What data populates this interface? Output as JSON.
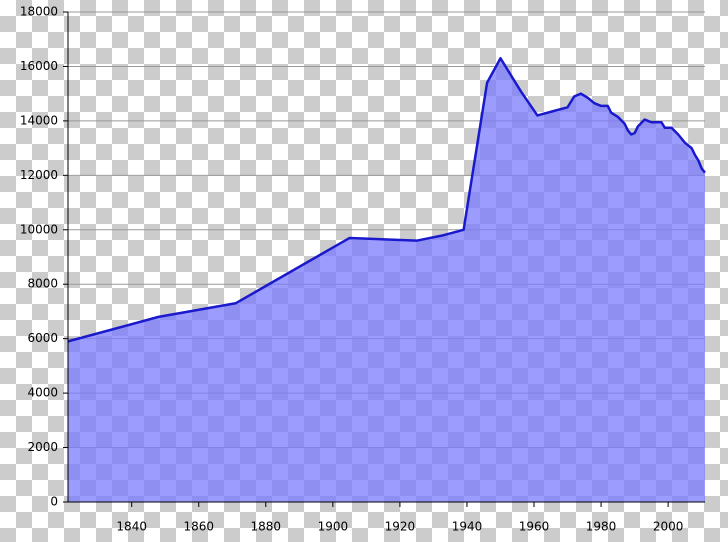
{
  "chart_data": {
    "type": "area",
    "x": [
      1821,
      1848,
      1871,
      1905,
      1925,
      1933,
      1939,
      1946,
      1950,
      1956,
      1961,
      1967,
      1970,
      1972,
      1974,
      1976,
      1978,
      1980,
      1982,
      1983,
      1985,
      1987,
      1988,
      1989,
      1990,
      1991,
      1993,
      1995,
      1998,
      1999,
      2001,
      2003,
      2005,
      2007,
      2008,
      2009,
      2010,
      2011
    ],
    "values": [
      5900,
      6800,
      7300,
      9700,
      9600,
      9800,
      10000,
      15400,
      16300,
      15100,
      14200,
      14400,
      14500,
      14900,
      15000,
      14850,
      14650,
      14550,
      14550,
      14300,
      14150,
      13900,
      13650,
      13500,
      13550,
      13800,
      14050,
      13950,
      13950,
      13750,
      13750,
      13500,
      13200,
      13000,
      12750,
      12550,
      12250,
      12100
    ],
    "color": "#1a1acc",
    "fill": "#7b7bff",
    "xlim": [
      1821,
      2011
    ],
    "xticks": [
      1840,
      1860,
      1880,
      1900,
      1920,
      1940,
      1960,
      1980,
      2000
    ],
    "ylim": [
      0,
      18000
    ],
    "yticks": [
      0,
      2000,
      4000,
      6000,
      8000,
      10000,
      12000,
      14000,
      16000,
      18000
    ],
    "grid": true
  }
}
